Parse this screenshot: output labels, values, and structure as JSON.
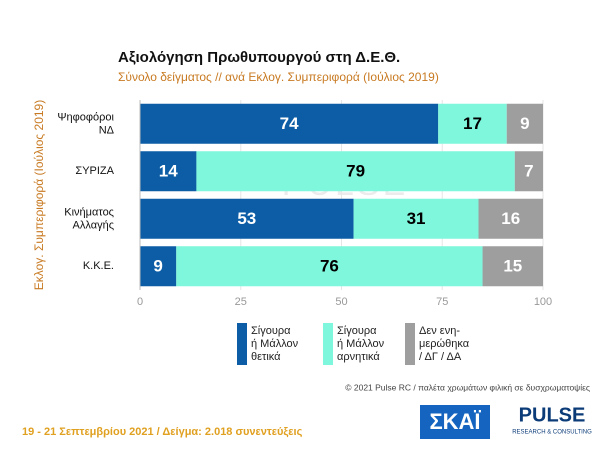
{
  "chart_data": {
    "type": "stacked-bar-horizontal",
    "title": "Αξιολόγηση Πρωθυπουργού στη Δ.Ε.Θ.",
    "subtitle": "Σύνολο δείγματος // ανά Εκλογ. Συμπεριφορά (Ιούλιος 2019)",
    "y_label": "Εκλογ. Συμπεριφορά (Ιούλιος 2019)",
    "categories": [
      "Ψηφοφόροι\nΝΔ",
      "ΣΥΡΙΖΑ",
      "Κινήματος\nΑλλαγής",
      "Κ.Κ.Ε."
    ],
    "series": [
      {
        "name": "Σίγουρα\nή Μάλλον\nθετικά",
        "color": "#0c5da5",
        "values": [
          74,
          14,
          53,
          9
        ]
      },
      {
        "name": "Σίγουρα\nή Μάλλον\nαρνητικά",
        "color": "#7ff7dc",
        "values": [
          17,
          79,
          31,
          76
        ]
      },
      {
        "name": "Δεν ενη-\nμερώθηκα\n/ ΔΓ / ΔΑ",
        "color": "#9e9e9e",
        "values": [
          9,
          7,
          16,
          15
        ]
      }
    ],
    "xlim": [
      0,
      100
    ],
    "xticks": [
      0,
      25,
      50,
      75,
      100
    ],
    "grid": true
  },
  "watermark": "PULSE",
  "copyright": "© 2021 Pulse RC  /  παλέτα χρωμάτων φιλική σε δυσχρωματοψίες",
  "footer": "19 - 21 Σεπτεμβρίου 2021  /  Δείγμα:  2.018 συνεντεύξεις",
  "logos": {
    "skai": "ΣΚΑΪ",
    "pulse": "PULSE",
    "pulse_sub": "RESEARCH & CONSULTING"
  }
}
